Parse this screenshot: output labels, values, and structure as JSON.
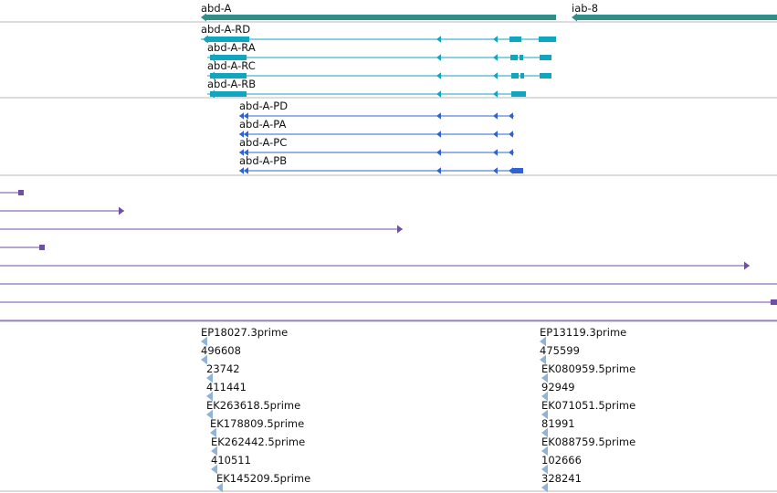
{
  "colors": {
    "gene": "#2f8f88",
    "transcript": "#10a6c0",
    "cds": "#2f63d4",
    "alignment": "#6e4ea8",
    "est": "#8fb4d8",
    "separator": "#b9b9b9"
  },
  "genes": [
    {
      "label": "abd-A"
    },
    {
      "label": "iab-8"
    }
  ],
  "transcripts": [
    {
      "label": "abd-A-RD"
    },
    {
      "label": "abd-A-RA"
    },
    {
      "label": "abd-A-RC"
    },
    {
      "label": "abd-A-RB"
    }
  ],
  "proteins": [
    {
      "label": "abd-A-PD"
    },
    {
      "label": "abd-A-PA"
    },
    {
      "label": "abd-A-PC"
    },
    {
      "label": "abd-A-PB"
    }
  ],
  "alignments_count": 8,
  "est_left": [
    {
      "label": "EP18027.3prime"
    },
    {
      "label": "496608"
    },
    {
      "label": "23742"
    },
    {
      "label": "411441"
    },
    {
      "label": "EK263618.5prime"
    },
    {
      "label": "EK178809.5prime"
    },
    {
      "label": "EK262442.5prime"
    },
    {
      "label": "410511"
    },
    {
      "label": "EK145209.5prime"
    }
  ],
  "est_right": [
    {
      "label": "EP13119.3prime"
    },
    {
      "label": "475599"
    },
    {
      "label": "EK080959.5prime"
    },
    {
      "label": "92949"
    },
    {
      "label": "EK071051.5prime"
    },
    {
      "label": "81991"
    },
    {
      "label": "EK088759.5prime"
    },
    {
      "label": "102666"
    },
    {
      "label": "328241"
    }
  ]
}
